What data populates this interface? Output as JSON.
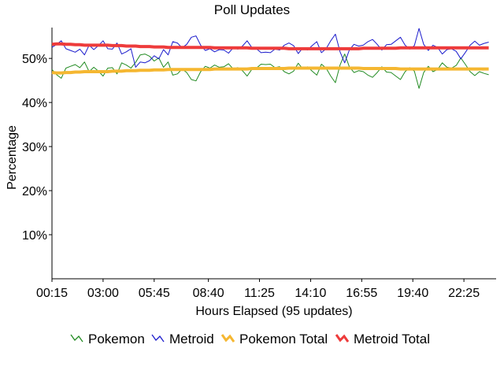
{
  "chart_data": {
    "type": "line",
    "title": "Poll Updates",
    "xlabel": "Hours Elapsed (95 updates)",
    "ylabel": "Percentage",
    "ylim": [
      0,
      57
    ],
    "xlim": [
      0.25,
      24.15
    ],
    "x_ticks": [
      {
        "x": 0.25,
        "label": "00:15"
      },
      {
        "x": 3.0,
        "label": "03:00"
      },
      {
        "x": 5.75,
        "label": "05:45"
      },
      {
        "x": 8.6667,
        "label": "08:40"
      },
      {
        "x": 11.4167,
        "label": "11:25"
      },
      {
        "x": 14.1667,
        "label": "14:10"
      },
      {
        "x": 16.9167,
        "label": "16:55"
      },
      {
        "x": 19.6667,
        "label": "19:40"
      },
      {
        "x": 22.4167,
        "label": "22:25"
      }
    ],
    "y_ticks": [
      {
        "y": 10,
        "label": "10%"
      },
      {
        "y": 20,
        "label": "20%"
      },
      {
        "y": 30,
        "label": "30%"
      },
      {
        "y": 40,
        "label": "40%"
      },
      {
        "y": 50,
        "label": "50%"
      }
    ],
    "grid": false,
    "legend_position": "bottom",
    "series": [
      {
        "name": "Pokemon",
        "color": "#228b22",
        "x": [
          0.25,
          0.5,
          0.75,
          1.0,
          1.25,
          1.5,
          1.75,
          2.0,
          2.25,
          2.5,
          2.75,
          3.0,
          3.25,
          3.5,
          3.75,
          4.0,
          4.25,
          4.5,
          4.75,
          5.0,
          5.25,
          5.5,
          5.75,
          6.0,
          6.25,
          6.5,
          6.75,
          7.0,
          7.25,
          7.5,
          7.75,
          8.0,
          8.25,
          8.5,
          8.75,
          9.0,
          9.25,
          9.5,
          9.75,
          10.0,
          10.25,
          10.5,
          10.75,
          11.0,
          11.25,
          11.5,
          11.75,
          12.0,
          12.25,
          12.5,
          12.75,
          13.0,
          13.25,
          13.5,
          13.75,
          14.0,
          14.25,
          14.5,
          14.75,
          15.0,
          15.25,
          15.5,
          15.75,
          16.0,
          16.25,
          16.5,
          16.75,
          17.0,
          17.25,
          17.5,
          17.75,
          18.0,
          18.25,
          18.5,
          18.75,
          19.0,
          19.25,
          19.5,
          19.75,
          20.0,
          20.25,
          20.5,
          20.75,
          21.0,
          21.25,
          21.5,
          21.75,
          22.0,
          22.25,
          22.5,
          22.75,
          23.0,
          23.25,
          23.5,
          23.75
        ],
        "values": [
          47.5,
          46.3,
          45.5,
          47.8,
          48.2,
          48.6,
          47.9,
          49.2,
          47.0,
          48.0,
          47.1,
          46.0,
          47.8,
          47.9,
          46.5,
          49.0,
          48.5,
          47.8,
          49.1,
          50.8,
          51.0,
          50.5,
          49.4,
          50.1,
          48.0,
          49.2,
          46.2,
          46.5,
          47.6,
          46.8,
          45.2,
          44.9,
          47.0,
          48.2,
          47.8,
          48.5,
          48.0,
          48.1,
          48.8,
          47.6,
          47.9,
          47.2,
          46.0,
          47.5,
          47.8,
          48.7,
          48.6,
          48.7,
          47.9,
          48.1,
          47.0,
          46.5,
          47.1,
          48.9,
          47.6,
          48.1,
          47.1,
          46.2,
          48.7,
          47.8,
          46.0,
          44.5,
          48.5,
          51.0,
          48.1,
          46.8,
          47.2,
          47.0,
          46.2,
          45.7,
          46.8,
          48.1,
          46.9,
          46.8,
          46.0,
          45.2,
          47.0,
          47.9,
          47.1,
          43.2,
          46.8,
          48.2,
          47.0,
          47.5,
          49.0,
          48.0,
          47.8,
          48.4,
          50.1,
          48.6,
          47.0,
          46.1,
          47.0,
          46.6,
          46.3
        ]
      },
      {
        "name": "Metroid",
        "color": "#1c1ccc",
        "x": [
          0.25,
          0.5,
          0.75,
          1.0,
          1.25,
          1.5,
          1.75,
          2.0,
          2.25,
          2.5,
          2.75,
          3.0,
          3.25,
          3.5,
          3.75,
          4.0,
          4.25,
          4.5,
          4.75,
          5.0,
          5.25,
          5.5,
          5.75,
          6.0,
          6.25,
          6.5,
          6.75,
          7.0,
          7.25,
          7.5,
          7.75,
          8.0,
          8.25,
          8.5,
          8.75,
          9.0,
          9.25,
          9.5,
          9.75,
          10.0,
          10.25,
          10.5,
          10.75,
          11.0,
          11.25,
          11.5,
          11.75,
          12.0,
          12.25,
          12.5,
          12.75,
          13.0,
          13.25,
          13.5,
          13.75,
          14.0,
          14.25,
          14.5,
          14.75,
          15.0,
          15.25,
          15.5,
          15.75,
          16.0,
          16.25,
          16.5,
          16.75,
          17.0,
          17.25,
          17.5,
          17.75,
          18.0,
          18.25,
          18.5,
          18.75,
          19.0,
          19.25,
          19.5,
          19.75,
          20.0,
          20.25,
          20.5,
          20.75,
          21.0,
          21.25,
          21.5,
          21.75,
          22.0,
          22.25,
          22.5,
          22.75,
          23.0,
          23.25,
          23.5,
          23.75
        ],
        "values": [
          52.5,
          53.2,
          54.0,
          52.2,
          51.8,
          51.4,
          52.1,
          50.8,
          53.0,
          52.0,
          52.9,
          54.0,
          52.2,
          52.1,
          53.5,
          51.0,
          51.5,
          52.2,
          48.0,
          49.2,
          49.0,
          49.5,
          50.6,
          49.9,
          52.0,
          50.8,
          53.8,
          53.5,
          52.4,
          53.2,
          54.8,
          55.1,
          53.0,
          51.8,
          52.2,
          51.5,
          52.0,
          51.9,
          51.2,
          52.4,
          52.1,
          52.8,
          54.0,
          52.5,
          52.2,
          51.3,
          51.4,
          51.3,
          52.1,
          51.9,
          53.0,
          53.5,
          52.9,
          51.1,
          52.4,
          51.9,
          52.9,
          53.8,
          51.3,
          52.2,
          54.0,
          55.5,
          51.5,
          49.0,
          51.9,
          53.2,
          52.8,
          53.0,
          53.8,
          54.3,
          53.2,
          51.9,
          53.1,
          53.2,
          54.0,
          54.8,
          53.0,
          52.1,
          52.9,
          56.8,
          53.2,
          51.8,
          53.0,
          52.5,
          51.0,
          52.0,
          52.2,
          51.6,
          49.9,
          51.4,
          53.0,
          53.9,
          53.0,
          53.4,
          53.7
        ]
      },
      {
        "name": "Pokemon Total",
        "color": "#f5b731",
        "x": [
          0.25,
          0.5,
          0.75,
          1.0,
          1.25,
          1.5,
          1.75,
          2.0,
          2.25,
          2.5,
          2.75,
          3.0,
          3.25,
          3.5,
          3.75,
          4.0,
          4.25,
          4.5,
          4.75,
          5.0,
          5.25,
          5.5,
          5.75,
          6.0,
          6.25,
          6.5,
          6.75,
          7.0,
          7.25,
          7.5,
          7.75,
          8.0,
          8.25,
          8.5,
          8.75,
          9.0,
          9.25,
          9.5,
          9.75,
          10.0,
          10.25,
          10.5,
          10.75,
          11.0,
          11.25,
          11.5,
          11.75,
          12.0,
          12.25,
          12.5,
          12.75,
          13.0,
          13.25,
          13.5,
          13.75,
          14.0,
          14.25,
          14.5,
          14.75,
          15.0,
          15.25,
          15.5,
          15.75,
          16.0,
          16.25,
          16.5,
          16.75,
          17.0,
          17.25,
          17.5,
          17.75,
          18.0,
          18.25,
          18.5,
          18.75,
          19.0,
          19.25,
          19.5,
          19.75,
          20.0,
          20.25,
          20.5,
          20.75,
          21.0,
          21.25,
          21.5,
          21.75,
          22.0,
          22.25,
          22.5,
          22.75,
          23.0,
          23.25,
          23.5,
          23.75
        ],
        "values": [
          46.8,
          46.7,
          46.7,
          46.8,
          46.8,
          46.9,
          46.9,
          47.0,
          47.0,
          47.0,
          47.0,
          47.0,
          47.0,
          47.1,
          47.1,
          47.1,
          47.2,
          47.2,
          47.2,
          47.3,
          47.3,
          47.3,
          47.4,
          47.4,
          47.4,
          47.5,
          47.5,
          47.5,
          47.5,
          47.5,
          47.5,
          47.5,
          47.5,
          47.5,
          47.5,
          47.6,
          47.6,
          47.6,
          47.6,
          47.6,
          47.6,
          47.6,
          47.6,
          47.7,
          47.7,
          47.7,
          47.7,
          47.7,
          47.7,
          47.7,
          47.7,
          47.8,
          47.8,
          47.8,
          47.8,
          47.8,
          47.8,
          47.8,
          47.8,
          47.8,
          47.8,
          47.8,
          47.8,
          47.8,
          47.8,
          47.8,
          47.8,
          47.7,
          47.7,
          47.7,
          47.7,
          47.7,
          47.7,
          47.7,
          47.7,
          47.6,
          47.6,
          47.6,
          47.6,
          47.6,
          47.6,
          47.6,
          47.6,
          47.6,
          47.6,
          47.6,
          47.6,
          47.6,
          47.6,
          47.6,
          47.6,
          47.6,
          47.6,
          47.6,
          47.6
        ]
      },
      {
        "name": "Metroid Total",
        "color": "#ee3b3b",
        "x": [
          0.25,
          0.5,
          0.75,
          1.0,
          1.25,
          1.5,
          1.75,
          2.0,
          2.25,
          2.5,
          2.75,
          3.0,
          3.25,
          3.5,
          3.75,
          4.0,
          4.25,
          4.5,
          4.75,
          5.0,
          5.25,
          5.5,
          5.75,
          6.0,
          6.25,
          6.5,
          6.75,
          7.0,
          7.25,
          7.5,
          7.75,
          8.0,
          8.25,
          8.5,
          8.75,
          9.0,
          9.25,
          9.5,
          9.75,
          10.0,
          10.25,
          10.5,
          10.75,
          11.0,
          11.25,
          11.5,
          11.75,
          12.0,
          12.25,
          12.5,
          12.75,
          13.0,
          13.25,
          13.5,
          13.75,
          14.0,
          14.25,
          14.5,
          14.75,
          15.0,
          15.25,
          15.5,
          15.75,
          16.0,
          16.25,
          16.5,
          16.75,
          17.0,
          17.25,
          17.5,
          17.75,
          18.0,
          18.25,
          18.5,
          18.75,
          19.0,
          19.25,
          19.5,
          19.75,
          20.0,
          20.25,
          20.5,
          20.75,
          21.0,
          21.25,
          21.5,
          21.75,
          22.0,
          22.25,
          22.5,
          22.75,
          23.0,
          23.25,
          23.5,
          23.75
        ],
        "values": [
          53.2,
          53.3,
          53.3,
          53.2,
          53.2,
          53.1,
          53.1,
          53.0,
          53.0,
          53.0,
          53.0,
          53.0,
          53.0,
          52.9,
          52.9,
          52.9,
          52.8,
          52.8,
          52.8,
          52.7,
          52.7,
          52.7,
          52.6,
          52.6,
          52.6,
          52.5,
          52.5,
          52.5,
          52.5,
          52.5,
          52.5,
          52.5,
          52.5,
          52.5,
          52.5,
          52.4,
          52.4,
          52.4,
          52.4,
          52.4,
          52.4,
          52.4,
          52.4,
          52.3,
          52.3,
          52.3,
          52.3,
          52.3,
          52.3,
          52.3,
          52.3,
          52.2,
          52.2,
          52.2,
          52.2,
          52.2,
          52.2,
          52.2,
          52.2,
          52.2,
          52.2,
          52.2,
          52.2,
          52.2,
          52.2,
          52.2,
          52.2,
          52.3,
          52.3,
          52.3,
          52.3,
          52.3,
          52.3,
          52.3,
          52.3,
          52.4,
          52.4,
          52.4,
          52.4,
          52.4,
          52.4,
          52.4,
          52.4,
          52.4,
          52.4,
          52.4,
          52.4,
          52.4,
          52.4,
          52.4,
          52.4,
          52.4,
          52.4,
          52.4,
          52.4
        ]
      }
    ]
  }
}
